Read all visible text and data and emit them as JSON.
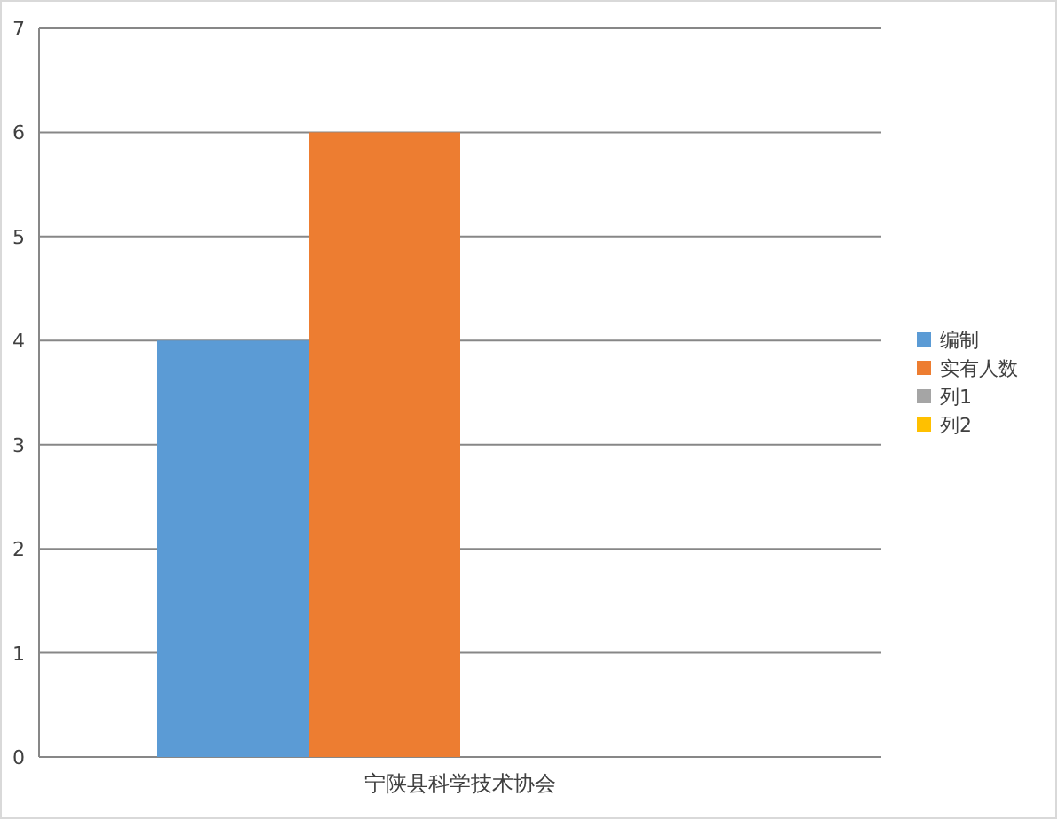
{
  "chart_data": {
    "type": "bar",
    "categories": [
      "宁陕县科学技术协会"
    ],
    "series": [
      {
        "name": "编制",
        "color": "#5b9bd5",
        "values": [
          4
        ]
      },
      {
        "name": "实有人数",
        "color": "#ed7d31",
        "values": [
          6
        ]
      },
      {
        "name": "列1",
        "color": "#a5a5a5",
        "values": [
          null
        ]
      },
      {
        "name": "列2",
        "color": "#ffc000",
        "values": [
          null
        ]
      }
    ],
    "ylim": [
      0,
      7
    ],
    "yticks": [
      0,
      1,
      2,
      3,
      4,
      5,
      6,
      7
    ],
    "grid": "y",
    "legend": "right"
  }
}
